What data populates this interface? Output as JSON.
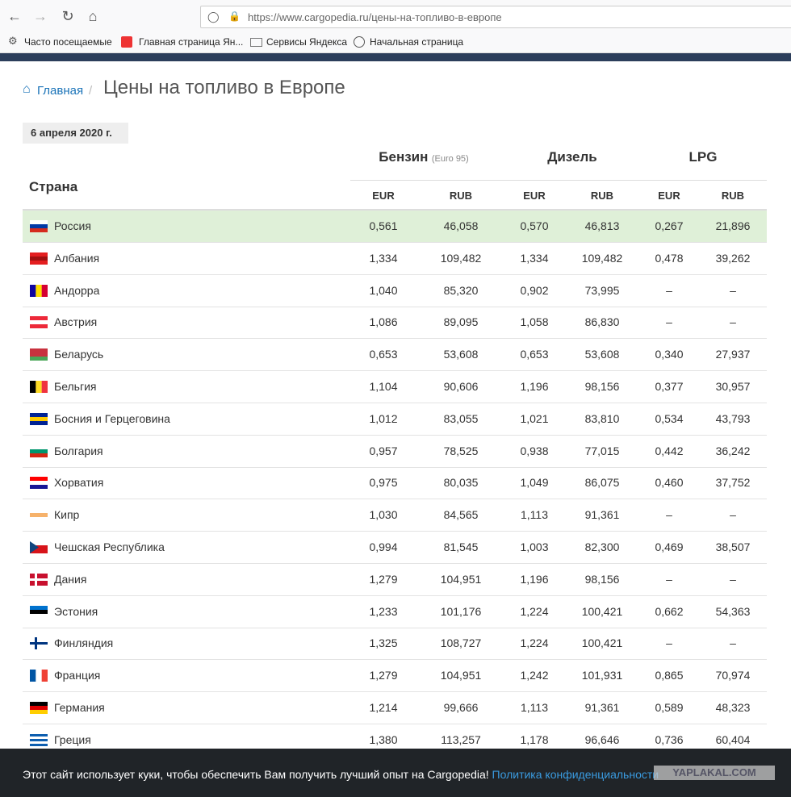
{
  "browser": {
    "url": "https://www.cargopedia.ru/цены-на-топливо-в-европе",
    "bookmarks": [
      "Часто посещаемые",
      "Главная страница Ян...",
      "Сервисы Яндекса",
      "Начальная страница"
    ]
  },
  "breadcrumb": {
    "home": "Главная",
    "title": "Цены на топливо в Европе"
  },
  "date": "6 апреля 2020 г.",
  "table": {
    "country_header": "Страна",
    "groups": [
      {
        "name": "Бензин",
        "note": "(Euro 95)"
      },
      {
        "name": "Дизель"
      },
      {
        "name": "LPG"
      }
    ],
    "subheaders": [
      "EUR",
      "RUB",
      "EUR",
      "RUB",
      "EUR",
      "RUB"
    ],
    "rows": [
      [
        "Россия",
        "0,561",
        "46,058",
        "0,570",
        "46,813",
        "0,267",
        "21,896"
      ],
      [
        "Албания",
        "1,334",
        "109,482",
        "1,334",
        "109,482",
        "0,478",
        "39,262"
      ],
      [
        "Андорра",
        "1,040",
        "85,320",
        "0,902",
        "73,995",
        "–",
        "–"
      ],
      [
        "Австрия",
        "1,086",
        "89,095",
        "1,058",
        "86,830",
        "–",
        "–"
      ],
      [
        "Беларусь",
        "0,653",
        "53,608",
        "0,653",
        "53,608",
        "0,340",
        "27,937"
      ],
      [
        "Бельгия",
        "1,104",
        "90,606",
        "1,196",
        "98,156",
        "0,377",
        "30,957"
      ],
      [
        "Босния и Герцеговина",
        "1,012",
        "83,055",
        "1,021",
        "83,810",
        "0,534",
        "43,793"
      ],
      [
        "Болгария",
        "0,957",
        "78,525",
        "0,938",
        "77,015",
        "0,442",
        "36,242"
      ],
      [
        "Хорватия",
        "0,975",
        "80,035",
        "1,049",
        "86,075",
        "0,460",
        "37,752"
      ],
      [
        "Кипр",
        "1,030",
        "84,565",
        "1,113",
        "91,361",
        "–",
        "–"
      ],
      [
        "Чешская Республика",
        "0,994",
        "81,545",
        "1,003",
        "82,300",
        "0,469",
        "38,507"
      ],
      [
        "Дания",
        "1,279",
        "104,951",
        "1,196",
        "98,156",
        "–",
        "–"
      ],
      [
        "Эстония",
        "1,233",
        "101,176",
        "1,224",
        "100,421",
        "0,662",
        "54,363"
      ],
      [
        "Финляндия",
        "1,325",
        "108,727",
        "1,224",
        "100,421",
        "–",
        "–"
      ],
      [
        "Франция",
        "1,279",
        "104,951",
        "1,242",
        "101,931",
        "0,865",
        "70,974"
      ],
      [
        "Германия",
        "1,214",
        "99,666",
        "1,113",
        "91,361",
        "0,589",
        "48,323"
      ],
      [
        "Греция",
        "1,380",
        "113,257",
        "1,178",
        "96,646",
        "0,736",
        "60,404"
      ]
    ]
  },
  "cookie": {
    "text": "Этот сайт использует куки, чтобы обеспечить Вам получить лучший опыт на Cargopedia!",
    "link": "Политика конфиденциальности"
  },
  "watermark": "YAPLAKAL.COM"
}
